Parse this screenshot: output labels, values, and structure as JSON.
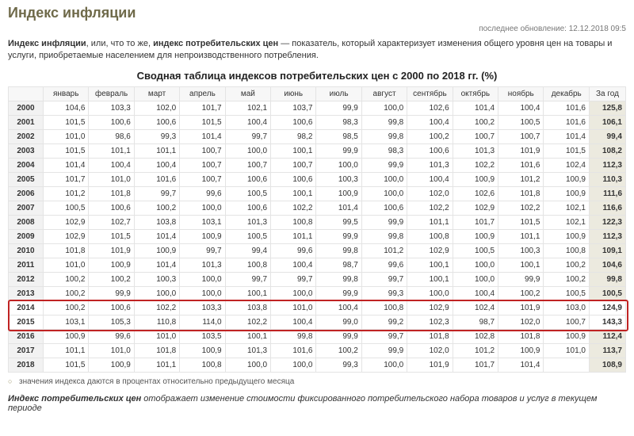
{
  "title": "Индекс инфляции",
  "updated_label": "последнее обновление:",
  "updated_value": "12.12.2018 09:5",
  "intro_parts": {
    "b1": "Индекс инфляции",
    "t1": ", или, что то же, ",
    "b2": "индекс потребительских цен",
    "t2": " — показатель, который характеризует изменения общего уровня цен на товары и услуги, приобретаемые населением для непроизводственного потребления."
  },
  "table_title": "Сводная таблица индексов потребительских цен с 2000 по 2018 гг. (%)",
  "months": [
    "январь",
    "февраль",
    "март",
    "апрель",
    "май",
    "июнь",
    "июль",
    "август",
    "сентябрь",
    "октябрь",
    "ноябрь",
    "декабрь"
  ],
  "year_total_label": "За год",
  "highlight_years": [
    "2014",
    "2015"
  ],
  "rows": [
    {
      "year": "2000",
      "v": [
        "104,6",
        "103,3",
        "102,0",
        "101,7",
        "102,1",
        "103,7",
        "99,9",
        "100,0",
        "102,6",
        "101,4",
        "100,4",
        "101,6"
      ],
      "total": "125,8"
    },
    {
      "year": "2001",
      "v": [
        "101,5",
        "100,6",
        "100,6",
        "101,5",
        "100,4",
        "100,6",
        "98,3",
        "99,8",
        "100,4",
        "100,2",
        "100,5",
        "101,6"
      ],
      "total": "106,1"
    },
    {
      "year": "2002",
      "v": [
        "101,0",
        "98,6",
        "99,3",
        "101,4",
        "99,7",
        "98,2",
        "98,5",
        "99,8",
        "100,2",
        "100,7",
        "100,7",
        "101,4"
      ],
      "total": "99,4"
    },
    {
      "year": "2003",
      "v": [
        "101,5",
        "101,1",
        "101,1",
        "100,7",
        "100,0",
        "100,1",
        "99,9",
        "98,3",
        "100,6",
        "101,3",
        "101,9",
        "101,5"
      ],
      "total": "108,2"
    },
    {
      "year": "2004",
      "v": [
        "101,4",
        "100,4",
        "100,4",
        "100,7",
        "100,7",
        "100,7",
        "100,0",
        "99,9",
        "101,3",
        "102,2",
        "101,6",
        "102,4"
      ],
      "total": "112,3"
    },
    {
      "year": "2005",
      "v": [
        "101,7",
        "101,0",
        "101,6",
        "100,7",
        "100,6",
        "100,6",
        "100,3",
        "100,0",
        "100,4",
        "100,9",
        "101,2",
        "100,9"
      ],
      "total": "110,3"
    },
    {
      "year": "2006",
      "v": [
        "101,2",
        "101,8",
        "99,7",
        "99,6",
        "100,5",
        "100,1",
        "100,9",
        "100,0",
        "102,0",
        "102,6",
        "101,8",
        "100,9"
      ],
      "total": "111,6"
    },
    {
      "year": "2007",
      "v": [
        "100,5",
        "100,6",
        "100,2",
        "100,0",
        "100,6",
        "102,2",
        "101,4",
        "100,6",
        "102,2",
        "102,9",
        "102,2",
        "102,1"
      ],
      "total": "116,6"
    },
    {
      "year": "2008",
      "v": [
        "102,9",
        "102,7",
        "103,8",
        "103,1",
        "101,3",
        "100,8",
        "99,5",
        "99,9",
        "101,1",
        "101,7",
        "101,5",
        "102,1"
      ],
      "total": "122,3"
    },
    {
      "year": "2009",
      "v": [
        "102,9",
        "101,5",
        "101,4",
        "100,9",
        "100,5",
        "101,1",
        "99,9",
        "99,8",
        "100,8",
        "100,9",
        "101,1",
        "100,9"
      ],
      "total": "112,3"
    },
    {
      "year": "2010",
      "v": [
        "101,8",
        "101,9",
        "100,9",
        "99,7",
        "99,4",
        "99,6",
        "99,8",
        "101,2",
        "102,9",
        "100,5",
        "100,3",
        "100,8"
      ],
      "total": "109,1"
    },
    {
      "year": "2011",
      "v": [
        "101,0",
        "100,9",
        "101,4",
        "101,3",
        "100,8",
        "100,4",
        "98,7",
        "99,6",
        "100,1",
        "100,0",
        "100,1",
        "100,2"
      ],
      "total": "104,6"
    },
    {
      "year": "2012",
      "v": [
        "100,2",
        "100,2",
        "100,3",
        "100,0",
        "99,7",
        "99,7",
        "99,8",
        "99,7",
        "100,1",
        "100,0",
        "99,9",
        "100,2"
      ],
      "total": "99,8"
    },
    {
      "year": "2013",
      "v": [
        "100,2",
        "99,9",
        "100,0",
        "100,0",
        "100,1",
        "100,0",
        "99,9",
        "99,3",
        "100,0",
        "100,4",
        "100,2",
        "100,5"
      ],
      "total": "100,5"
    },
    {
      "year": "2014",
      "v": [
        "100,2",
        "100,6",
        "102,2",
        "103,3",
        "103,8",
        "101,0",
        "100,4",
        "100,8",
        "102,9",
        "102,4",
        "101,9",
        "103,0"
      ],
      "total": "124,9"
    },
    {
      "year": "2015",
      "v": [
        "103,1",
        "105,3",
        "110,8",
        "114,0",
        "102,2",
        "100,4",
        "99,0",
        "99,2",
        "102,3",
        "98,7",
        "102,0",
        "100,7"
      ],
      "total": "143,3"
    },
    {
      "year": "2016",
      "v": [
        "100,9",
        "99,6",
        "101,0",
        "103,5",
        "100,1",
        "99,8",
        "99,9",
        "99,7",
        "101,8",
        "102,8",
        "101,8",
        "100,9"
      ],
      "total": "112,4"
    },
    {
      "year": "2017",
      "v": [
        "101,1",
        "101,0",
        "101,8",
        "100,9",
        "101,3",
        "101,6",
        "100,2",
        "99,9",
        "102,0",
        "101,2",
        "100,9",
        "101,0"
      ],
      "total": "113,7"
    },
    {
      "year": "2018",
      "v": [
        "101,5",
        "100,9",
        "101,1",
        "100,8",
        "100,0",
        "100,0",
        "99,3",
        "100,0",
        "101,9",
        "101,7",
        "101,4",
        ""
      ],
      "total": "108,9"
    }
  ],
  "footnote": "значения индекса даются в процентах относительно предыдущего месяца",
  "def_parts": {
    "b1": "Индекс потребительских цен",
    "t1": " отображает изменение стоимости фиксированного потребительского набора товаров и услуг в текущем периоде"
  },
  "colors": {
    "title": "#6f6a4a",
    "border": "#e4e4e4",
    "highlight_border": "#c02323",
    "total_bg": "#eceadf"
  }
}
